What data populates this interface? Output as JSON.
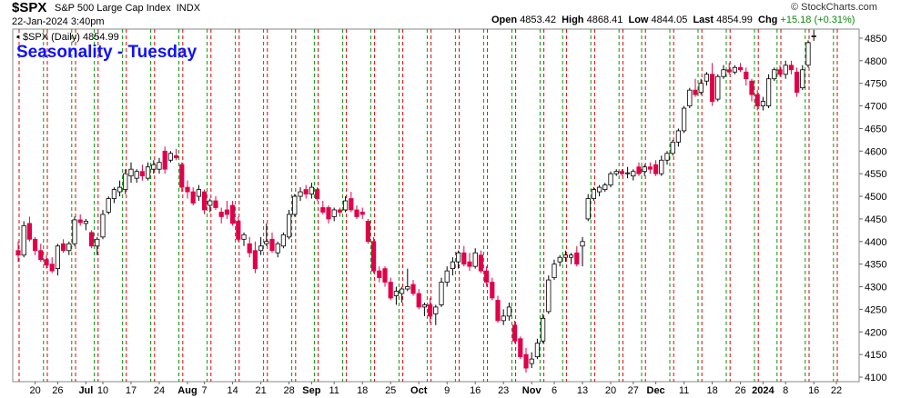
{
  "header": {
    "symbol": "$SPX",
    "name": "S&P 500 Large Cap Index",
    "exchange": "INDX",
    "date": "22-Jan-2024 3:40pm",
    "brand": "© StockCharts.com",
    "open_label": "Open",
    "open": "4853.42",
    "high_label": "High",
    "high": "4868.41",
    "low_label": "Low",
    "low": "4844.05",
    "last_label": "Last",
    "last": "4854.99",
    "chg_label": "Chg",
    "chg": "+15.18 (+0.31%)"
  },
  "legend_label": "$SPX (Daily) 4854.99",
  "colors": {
    "up": "#000000",
    "down": "#e0004a",
    "tuesday_line": "#e00000",
    "weekstart_line": "#009900",
    "title": "#1010ff"
  },
  "chart_data": {
    "type": "candlestick",
    "title": "Seasonality - Tuesday",
    "ylim": [
      4090,
      4870
    ],
    "y_ticks": [
      4100,
      4150,
      4200,
      4250,
      4300,
      4350,
      4400,
      4450,
      4500,
      4550,
      4600,
      4650,
      4700,
      4750,
      4800,
      4850
    ],
    "x_labels": [
      {
        "i": 3,
        "label": "20"
      },
      {
        "i": 7,
        "label": "26"
      },
      {
        "i": 12,
        "label": "Jul"
      },
      {
        "i": 15,
        "label": "10"
      },
      {
        "i": 20,
        "label": "17"
      },
      {
        "i": 25,
        "label": "24"
      },
      {
        "i": 30,
        "label": "Aug"
      },
      {
        "i": 33,
        "label": "7"
      },
      {
        "i": 38,
        "label": "14"
      },
      {
        "i": 43,
        "label": "21"
      },
      {
        "i": 48,
        "label": "28"
      },
      {
        "i": 52,
        "label": "Sep"
      },
      {
        "i": 56,
        "label": "11"
      },
      {
        "i": 61,
        "label": "18"
      },
      {
        "i": 66,
        "label": "25"
      },
      {
        "i": 71,
        "label": "Oct"
      },
      {
        "i": 76,
        "label": "9"
      },
      {
        "i": 81,
        "label": "16"
      },
      {
        "i": 86,
        "label": "23"
      },
      {
        "i": 91,
        "label": "Nov"
      },
      {
        "i": 95,
        "label": "6"
      },
      {
        "i": 100,
        "label": "13"
      },
      {
        "i": 105,
        "label": "20"
      },
      {
        "i": 109,
        "label": "27"
      },
      {
        "i": 113,
        "label": "Dec"
      },
      {
        "i": 118,
        "label": "11"
      },
      {
        "i": 123,
        "label": "18"
      },
      {
        "i": 128,
        "label": "26"
      },
      {
        "i": 132,
        "label": "2024"
      },
      {
        "i": 136,
        "label": "8"
      },
      {
        "i": 141,
        "label": "16"
      },
      {
        "i": 145,
        "label": "22"
      }
    ],
    "tuesday_marks": [
      0,
      5,
      10,
      14,
      19,
      24,
      29,
      34,
      39,
      44,
      49,
      53,
      58,
      63,
      68,
      73,
      78,
      83,
      88,
      93,
      97,
      102,
      107,
      111,
      116,
      121,
      126,
      131,
      135,
      140,
      145
    ],
    "weekstart_marks": [
      4,
      9,
      13,
      18,
      23,
      28,
      33,
      38,
      43,
      48,
      52,
      57,
      62,
      67,
      72,
      77,
      82,
      87,
      92,
      96,
      101,
      106,
      110,
      115,
      120,
      125,
      130,
      134,
      139,
      144
    ],
    "candles": [
      {
        "o": 4380,
        "h": 4400,
        "l": 4355,
        "c": 4370
      },
      {
        "o": 4370,
        "h": 4445,
        "l": 4365,
        "c": 4435
      },
      {
        "o": 4440,
        "h": 4455,
        "l": 4400,
        "c": 4405
      },
      {
        "o": 4405,
        "h": 4410,
        "l": 4370,
        "c": 4380
      },
      {
        "o": 4380,
        "h": 4395,
        "l": 4355,
        "c": 4360
      },
      {
        "o": 4360,
        "h": 4370,
        "l": 4340,
        "c": 4348
      },
      {
        "o": 4350,
        "h": 4365,
        "l": 4330,
        "c": 4335
      },
      {
        "o": 4340,
        "h": 4395,
        "l": 4325,
        "c": 4390
      },
      {
        "o": 4395,
        "h": 4405,
        "l": 4375,
        "c": 4380
      },
      {
        "o": 4380,
        "h": 4400,
        "l": 4370,
        "c": 4395
      },
      {
        "o": 4395,
        "h": 4455,
        "l": 4390,
        "c": 4448
      },
      {
        "o": 4448,
        "h": 4460,
        "l": 4435,
        "c": 4442
      },
      {
        "o": 4440,
        "h": 4450,
        "l": 4425,
        "c": 4445
      },
      {
        "o": 4420,
        "h": 4425,
        "l": 4385,
        "c": 4390
      },
      {
        "o": 4390,
        "h": 4410,
        "l": 4370,
        "c": 4405
      },
      {
        "o": 4410,
        "h": 4470,
        "l": 4405,
        "c": 4460
      },
      {
        "o": 4465,
        "h": 4500,
        "l": 4460,
        "c": 4495
      },
      {
        "o": 4495,
        "h": 4520,
        "l": 4485,
        "c": 4515
      },
      {
        "o": 4510,
        "h": 4535,
        "l": 4500,
        "c": 4520
      },
      {
        "o": 4515,
        "h": 4560,
        "l": 4505,
        "c": 4550
      },
      {
        "o": 4545,
        "h": 4575,
        "l": 4530,
        "c": 4560
      },
      {
        "o": 4540,
        "h": 4560,
        "l": 4530,
        "c": 4555
      },
      {
        "o": 4555,
        "h": 4570,
        "l": 4535,
        "c": 4545
      },
      {
        "o": 4540,
        "h": 4575,
        "l": 4535,
        "c": 4565
      },
      {
        "o": 4560,
        "h": 4580,
        "l": 4550,
        "c": 4570
      },
      {
        "o": 4560,
        "h": 4585,
        "l": 4550,
        "c": 4575
      },
      {
        "o": 4600,
        "h": 4610,
        "l": 4550,
        "c": 4560
      },
      {
        "o": 4580,
        "h": 4600,
        "l": 4575,
        "c": 4595
      },
      {
        "o": 4590,
        "h": 4605,
        "l": 4580,
        "c": 4585
      },
      {
        "o": 4570,
        "h": 4575,
        "l": 4510,
        "c": 4520
      },
      {
        "o": 4520,
        "h": 4535,
        "l": 4495,
        "c": 4510
      },
      {
        "o": 4510,
        "h": 4520,
        "l": 4480,
        "c": 4485
      },
      {
        "o": 4500,
        "h": 4525,
        "l": 4490,
        "c": 4515
      },
      {
        "o": 4510,
        "h": 4515,
        "l": 4460,
        "c": 4470
      },
      {
        "o": 4480,
        "h": 4495,
        "l": 4465,
        "c": 4490
      },
      {
        "o": 4490,
        "h": 4500,
        "l": 4470,
        "c": 4475
      },
      {
        "o": 4465,
        "h": 4475,
        "l": 4440,
        "c": 4455
      },
      {
        "o": 4470,
        "h": 4490,
        "l": 4450,
        "c": 4460
      },
      {
        "o": 4480,
        "h": 4490,
        "l": 4435,
        "c": 4440
      },
      {
        "o": 4445,
        "h": 4455,
        "l": 4400,
        "c": 4405
      },
      {
        "o": 4405,
        "h": 4420,
        "l": 4390,
        "c": 4415
      },
      {
        "o": 4395,
        "h": 4410,
        "l": 4365,
        "c": 4375
      },
      {
        "o": 4380,
        "h": 4400,
        "l": 4330,
        "c": 4340
      },
      {
        "o": 4380,
        "h": 4410,
        "l": 4370,
        "c": 4390
      },
      {
        "o": 4395,
        "h": 4440,
        "l": 4390,
        "c": 4400
      },
      {
        "o": 4405,
        "h": 4420,
        "l": 4375,
        "c": 4380
      },
      {
        "o": 4375,
        "h": 4400,
        "l": 4365,
        "c": 4395
      },
      {
        "o": 4390,
        "h": 4420,
        "l": 4385,
        "c": 4415
      },
      {
        "o": 4410,
        "h": 4470,
        "l": 4405,
        "c": 4460
      },
      {
        "o": 4460,
        "h": 4505,
        "l": 4455,
        "c": 4500
      },
      {
        "o": 4500,
        "h": 4520,
        "l": 4490,
        "c": 4510
      },
      {
        "o": 4515,
        "h": 4525,
        "l": 4495,
        "c": 4505
      },
      {
        "o": 4505,
        "h": 4530,
        "l": 4495,
        "c": 4520
      },
      {
        "o": 4515,
        "h": 4520,
        "l": 4490,
        "c": 4495
      },
      {
        "o": 4475,
        "h": 4490,
        "l": 4460,
        "c": 4465
      },
      {
        "o": 4475,
        "h": 4480,
        "l": 4440,
        "c": 4450
      },
      {
        "o": 4455,
        "h": 4475,
        "l": 4445,
        "c": 4470
      },
      {
        "o": 4470,
        "h": 4475,
        "l": 4455,
        "c": 4465
      },
      {
        "o": 4470,
        "h": 4500,
        "l": 4465,
        "c": 4490
      },
      {
        "o": 4495,
        "h": 4510,
        "l": 4465,
        "c": 4470
      },
      {
        "o": 4470,
        "h": 4480,
        "l": 4450,
        "c": 4455
      },
      {
        "o": 4465,
        "h": 4475,
        "l": 4450,
        "c": 4460
      },
      {
        "o": 4445,
        "h": 4450,
        "l": 4395,
        "c": 4400
      },
      {
        "o": 4400,
        "h": 4410,
        "l": 4330,
        "c": 4335
      },
      {
        "o": 4335,
        "h": 4345,
        "l": 4310,
        "c": 4320
      },
      {
        "o": 4340,
        "h": 4345,
        "l": 4300,
        "c": 4310
      },
      {
        "o": 4310,
        "h": 4320,
        "l": 4270,
        "c": 4275
      },
      {
        "o": 4280,
        "h": 4300,
        "l": 4260,
        "c": 4290
      },
      {
        "o": 4285,
        "h": 4300,
        "l": 4265,
        "c": 4295
      },
      {
        "o": 4295,
        "h": 4340,
        "l": 4290,
        "c": 4300
      },
      {
        "o": 4305,
        "h": 4315,
        "l": 4280,
        "c": 4285
      },
      {
        "o": 4285,
        "h": 4295,
        "l": 4250,
        "c": 4255
      },
      {
        "o": 4255,
        "h": 4265,
        "l": 4235,
        "c": 4260
      },
      {
        "o": 4260,
        "h": 4275,
        "l": 4220,
        "c": 4235
      },
      {
        "o": 4240,
        "h": 4260,
        "l": 4215,
        "c": 4255
      },
      {
        "o": 4260,
        "h": 4320,
        "l": 4255,
        "c": 4310
      },
      {
        "o": 4310,
        "h": 4345,
        "l": 4300,
        "c": 4335
      },
      {
        "o": 4340,
        "h": 4365,
        "l": 4325,
        "c": 4355
      },
      {
        "o": 4355,
        "h": 4380,
        "l": 4340,
        "c": 4375
      },
      {
        "o": 4375,
        "h": 4390,
        "l": 4345,
        "c": 4350
      },
      {
        "o": 4355,
        "h": 4375,
        "l": 4335,
        "c": 4345
      },
      {
        "o": 4345,
        "h": 4385,
        "l": 4340,
        "c": 4375
      },
      {
        "o": 4370,
        "h": 4380,
        "l": 4330,
        "c": 4335
      },
      {
        "o": 4335,
        "h": 4345,
        "l": 4300,
        "c": 4310
      },
      {
        "o": 4310,
        "h": 4320,
        "l": 4270,
        "c": 4275
      },
      {
        "o": 4270,
        "h": 4280,
        "l": 4220,
        "c": 4225
      },
      {
        "o": 4225,
        "h": 4250,
        "l": 4215,
        "c": 4235
      },
      {
        "o": 4235,
        "h": 4265,
        "l": 4225,
        "c": 4255
      },
      {
        "o": 4215,
        "h": 4225,
        "l": 4175,
        "c": 4180
      },
      {
        "o": 4185,
        "h": 4190,
        "l": 4140,
        "c": 4145
      },
      {
        "o": 4150,
        "h": 4165,
        "l": 4110,
        "c": 4120
      },
      {
        "o": 4130,
        "h": 4155,
        "l": 4120,
        "c": 4140
      },
      {
        "o": 4145,
        "h": 4185,
        "l": 4140,
        "c": 4175
      },
      {
        "o": 4180,
        "h": 4240,
        "l": 4175,
        "c": 4230
      },
      {
        "o": 4245,
        "h": 4325,
        "l": 4240,
        "c": 4315
      },
      {
        "o": 4320,
        "h": 4360,
        "l": 4315,
        "c": 4350
      },
      {
        "o": 4355,
        "h": 4370,
        "l": 4345,
        "c": 4365
      },
      {
        "o": 4365,
        "h": 4380,
        "l": 4355,
        "c": 4370
      },
      {
        "o": 4365,
        "h": 4375,
        "l": 4350,
        "c": 4370
      },
      {
        "o": 4375,
        "h": 4390,
        "l": 4345,
        "c": 4350
      },
      {
        "o": 4390,
        "h": 4410,
        "l": 4345,
        "c": 4400
      },
      {
        "o": 4450,
        "h": 4505,
        "l": 4445,
        "c": 4495
      },
      {
        "o": 4495,
        "h": 4520,
        "l": 4490,
        "c": 4515
      },
      {
        "o": 4510,
        "h": 4525,
        "l": 4500,
        "c": 4520
      },
      {
        "o": 4515,
        "h": 4530,
        "l": 4510,
        "c": 4525
      },
      {
        "o": 4525,
        "h": 4555,
        "l": 4520,
        "c": 4550
      },
      {
        "o": 4550,
        "h": 4560,
        "l": 4545,
        "c": 4555
      },
      {
        "o": 4555,
        "h": 4560,
        "l": 4545,
        "c": 4550
      },
      {
        "o": 4550,
        "h": 4565,
        "l": 4540,
        "c": 4552
      },
      {
        "o": 4545,
        "h": 4560,
        "l": 4535,
        "c": 4555
      },
      {
        "o": 4565,
        "h": 4575,
        "l": 4545,
        "c": 4550
      },
      {
        "o": 4555,
        "h": 4570,
        "l": 4545,
        "c": 4565
      },
      {
        "o": 4565,
        "h": 4575,
        "l": 4550,
        "c": 4560
      },
      {
        "o": 4570,
        "h": 4580,
        "l": 4545,
        "c": 4550
      },
      {
        "o": 4550,
        "h": 4590,
        "l": 4545,
        "c": 4580
      },
      {
        "o": 4580,
        "h": 4600,
        "l": 4570,
        "c": 4595
      },
      {
        "o": 4595,
        "h": 4625,
        "l": 4590,
        "c": 4620
      },
      {
        "o": 4620,
        "h": 4650,
        "l": 4610,
        "c": 4645
      },
      {
        "o": 4645,
        "h": 4700,
        "l": 4640,
        "c": 4695
      },
      {
        "o": 4700,
        "h": 4740,
        "l": 4695,
        "c": 4735
      },
      {
        "o": 4735,
        "h": 4760,
        "l": 4720,
        "c": 4725
      },
      {
        "o": 4730,
        "h": 4760,
        "l": 4725,
        "c": 4750
      },
      {
        "o": 4755,
        "h": 4775,
        "l": 4745,
        "c": 4770
      },
      {
        "o": 4770,
        "h": 4795,
        "l": 4700,
        "c": 4710
      },
      {
        "o": 4715,
        "h": 4770,
        "l": 4710,
        "c": 4765
      },
      {
        "o": 4765,
        "h": 4790,
        "l": 4760,
        "c": 4780
      },
      {
        "o": 4780,
        "h": 4795,
        "l": 4770,
        "c": 4775
      },
      {
        "o": 4775,
        "h": 4790,
        "l": 4770,
        "c": 4785
      },
      {
        "o": 4785,
        "h": 4795,
        "l": 4775,
        "c": 4780
      },
      {
        "o": 4775,
        "h": 4785,
        "l": 4745,
        "c": 4760
      },
      {
        "o": 4755,
        "h": 4760,
        "l": 4710,
        "c": 4725
      },
      {
        "o": 4725,
        "h": 4735,
        "l": 4690,
        "c": 4700
      },
      {
        "o": 4700,
        "h": 4720,
        "l": 4690,
        "c": 4710
      },
      {
        "o": 4700,
        "h": 4770,
        "l": 4695,
        "c": 4760
      },
      {
        "o": 4760,
        "h": 4785,
        "l": 4755,
        "c": 4780
      },
      {
        "o": 4780,
        "h": 4790,
        "l": 4765,
        "c": 4770
      },
      {
        "o": 4770,
        "h": 4800,
        "l": 4760,
        "c": 4790
      },
      {
        "o": 4790,
        "h": 4800,
        "l": 4770,
        "c": 4780
      },
      {
        "o": 4775,
        "h": 4785,
        "l": 4720,
        "c": 4730
      },
      {
        "o": 4740,
        "h": 4790,
        "l": 4735,
        "c": 4780
      },
      {
        "o": 4790,
        "h": 4845,
        "l": 4785,
        "c": 4840
      },
      {
        "o": 4853.42,
        "h": 4868.41,
        "l": 4844.05,
        "c": 4854.99,
        "highlight": true
      }
    ]
  }
}
